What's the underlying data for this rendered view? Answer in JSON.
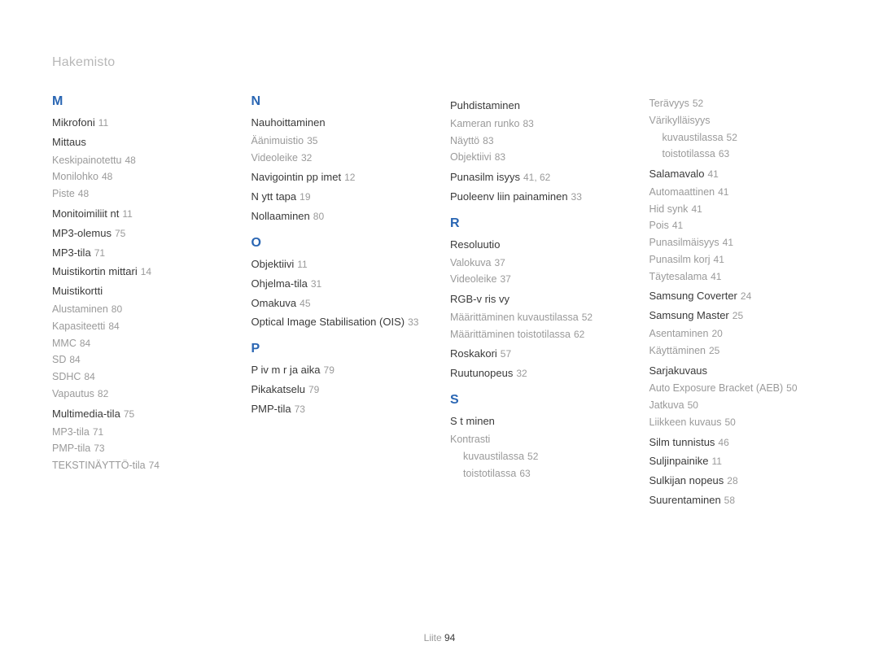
{
  "header": "Hakemisto",
  "footer_label": "Liite",
  "footer_page": "94",
  "accent_color": "#2a66b3",
  "text_color": "#3e3e3e",
  "muted_color": "#9a9a9a",
  "background": "#ffffff",
  "columns": [
    [
      {
        "type": "letter",
        "text": "M"
      },
      {
        "type": "main",
        "label": "Mikrofoni",
        "pages": "11"
      },
      {
        "type": "main",
        "label": "Mittaus"
      },
      {
        "type": "sub",
        "label": "Keskipainotettu",
        "pages": "48"
      },
      {
        "type": "sub",
        "label": "Monilohko",
        "pages": "48"
      },
      {
        "type": "sub",
        "label": "Piste",
        "pages": "48",
        "last": true
      },
      {
        "type": "main",
        "label": "Monitoimiliit nt",
        "pages": "11"
      },
      {
        "type": "main",
        "label": "MP3-olemus",
        "pages": "75"
      },
      {
        "type": "main",
        "label": "MP3-tila",
        "pages": "71"
      },
      {
        "type": "main",
        "label": "Muistikortin mittari",
        "pages": "14"
      },
      {
        "type": "main",
        "label": "Muistikortti"
      },
      {
        "type": "sub",
        "label": "Alustaminen",
        "pages": "80"
      },
      {
        "type": "sub",
        "label": "Kapasiteetti",
        "pages": "84"
      },
      {
        "type": "sub",
        "label": "MMC",
        "pages": "84"
      },
      {
        "type": "sub",
        "label": "SD",
        "pages": "84"
      },
      {
        "type": "sub",
        "label": "SDHC",
        "pages": "84"
      },
      {
        "type": "sub",
        "label": "Vapautus",
        "pages": "82",
        "last": true
      },
      {
        "type": "main",
        "label": "Multimedia-tila",
        "pages": "75"
      },
      {
        "type": "sub",
        "label": "MP3-tila",
        "pages": "71"
      },
      {
        "type": "sub",
        "label": "PMP-tila",
        "pages": "73"
      },
      {
        "type": "sub",
        "label": "TEKSTINÄYTTÖ-tila",
        "pages": "74"
      }
    ],
    [
      {
        "type": "letter",
        "text": "N"
      },
      {
        "type": "main",
        "label": "Nauhoittaminen"
      },
      {
        "type": "sub",
        "label": "Äänimuistio",
        "pages": "35"
      },
      {
        "type": "sub",
        "label": "Videoleike",
        "pages": "32",
        "last": true
      },
      {
        "type": "main",
        "label": "Navigointin pp imet",
        "pages": "12"
      },
      {
        "type": "main",
        "label": "N ytt tapa",
        "pages": "19"
      },
      {
        "type": "main",
        "label": "Nollaaminen",
        "pages": "80"
      },
      {
        "type": "letter",
        "text": "O"
      },
      {
        "type": "main",
        "label": "Objektiivi",
        "pages": "11"
      },
      {
        "type": "main",
        "label": "Ohjelma-tila",
        "pages": "31"
      },
      {
        "type": "main",
        "label": "Omakuva",
        "pages": "45"
      },
      {
        "type": "main",
        "label": "Optical Image Stabilisation (OIS)",
        "pages": "33"
      },
      {
        "type": "letter",
        "text": "P"
      },
      {
        "type": "main",
        "label": "P iv m r  ja aika",
        "pages": "79"
      },
      {
        "type": "main",
        "label": "Pikakatselu",
        "pages": "79"
      },
      {
        "type": "main",
        "label": "PMP-tila",
        "pages": "73"
      }
    ],
    [
      {
        "type": "main",
        "label": "Puhdistaminen"
      },
      {
        "type": "sub",
        "label": "Kameran runko",
        "pages": "83"
      },
      {
        "type": "sub",
        "label": "Näyttö",
        "pages": "83"
      },
      {
        "type": "sub",
        "label": "Objektiivi",
        "pages": "83",
        "last": true
      },
      {
        "type": "main",
        "label": "Punasilm isyys",
        "pages": "41, 62"
      },
      {
        "type": "main",
        "label": "Puoleenv liin painaminen",
        "pages": "33"
      },
      {
        "type": "letter",
        "text": "R"
      },
      {
        "type": "main",
        "label": "Resoluutio"
      },
      {
        "type": "sub",
        "label": "Valokuva",
        "pages": "37"
      },
      {
        "type": "sub",
        "label": "Videoleike",
        "pages": "37",
        "last": true
      },
      {
        "type": "main",
        "label": "RGB-v ris vy"
      },
      {
        "type": "sub",
        "label": "Määrittäminen kuvaustilassa",
        "pages": "52"
      },
      {
        "type": "sub",
        "label": "Määrittäminen toistotilassa",
        "pages": "62",
        "last": true
      },
      {
        "type": "main",
        "label": "Roskakori",
        "pages": "57"
      },
      {
        "type": "main",
        "label": "Ruutunopeus",
        "pages": "32"
      },
      {
        "type": "letter",
        "text": "S"
      },
      {
        "type": "main",
        "label": "S t minen"
      },
      {
        "type": "sub",
        "label": "Kontrasti"
      },
      {
        "type": "subsub",
        "label": "kuvaustilassa",
        "pages": "52"
      },
      {
        "type": "subsub",
        "label": "toistotilassa",
        "pages": "63"
      }
    ],
    [
      {
        "type": "sub",
        "label": "Terävyys",
        "pages": "52"
      },
      {
        "type": "sub",
        "label": "Värikylläisyys"
      },
      {
        "type": "subsub",
        "label": "kuvaustilassa",
        "pages": "52"
      },
      {
        "type": "subsub",
        "label": "toistotilassa",
        "pages": "63",
        "last": true
      },
      {
        "type": "main",
        "label": "Salamavalo",
        "pages": "41"
      },
      {
        "type": "sub",
        "label": "Automaattinen",
        "pages": "41"
      },
      {
        "type": "sub",
        "label": "Hid synk",
        "pages": "41"
      },
      {
        "type": "sub",
        "label": "Pois",
        "pages": "41"
      },
      {
        "type": "sub",
        "label": "Punasilmäisyys",
        "pages": "41"
      },
      {
        "type": "sub",
        "label": "Punasilm korj",
        "pages": "41"
      },
      {
        "type": "sub",
        "label": "Täytesalama",
        "pages": "41",
        "last": true
      },
      {
        "type": "main",
        "label": "Samsung Coverter",
        "pages": "24"
      },
      {
        "type": "main",
        "label": "Samsung Master",
        "pages": "25"
      },
      {
        "type": "sub",
        "label": "Asentaminen",
        "pages": "20"
      },
      {
        "type": "sub",
        "label": "Käyttäminen",
        "pages": "25",
        "last": true
      },
      {
        "type": "main",
        "label": "Sarjakuvaus"
      },
      {
        "type": "sub",
        "label": "Auto Exposure Bracket (AEB)",
        "pages": "50"
      },
      {
        "type": "sub",
        "label": "Jatkuva",
        "pages": "50"
      },
      {
        "type": "sub",
        "label": "Liikkeen kuvaus",
        "pages": "50",
        "last": true
      },
      {
        "type": "main",
        "label": "Silm tunnistus",
        "pages": "46"
      },
      {
        "type": "main",
        "label": "Suljinpainike",
        "pages": "11"
      },
      {
        "type": "main",
        "label": "Sulkijan nopeus",
        "pages": "28"
      },
      {
        "type": "main",
        "label": "Suurentaminen",
        "pages": "58"
      }
    ]
  ]
}
